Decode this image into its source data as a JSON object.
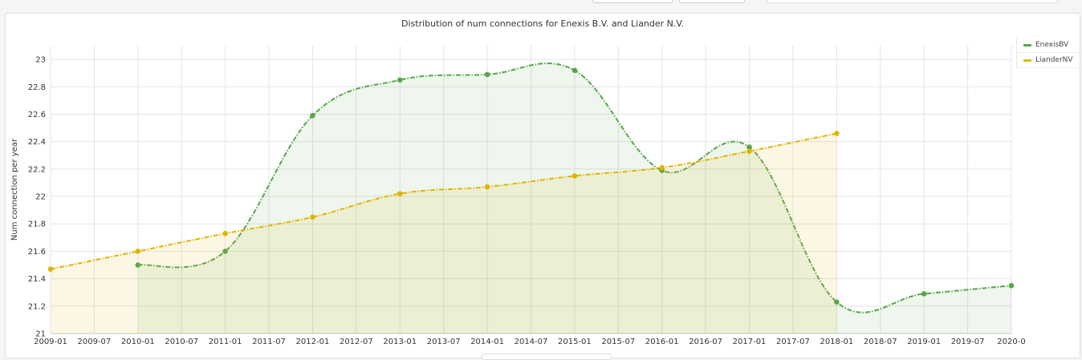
{
  "panel": {
    "title": "Distribution of num connections for Enexis B.V. and Liander N.V."
  },
  "chart_data": {
    "type": "line",
    "title": "Distribution of num connections for Enexis B.V. and Liander N.V.",
    "xlabel": "",
    "ylabel": "Num connection per year",
    "x_ticks": [
      "2009-01",
      "2009-07",
      "2010-01",
      "2010-07",
      "2011-01",
      "2011-07",
      "2012-01",
      "2012-07",
      "2013-01",
      "2013-07",
      "2014-01",
      "2014-07",
      "2015-01",
      "2015-07",
      "2016-01",
      "2016-07",
      "2017-01",
      "2017-07",
      "2018-01",
      "2018-07",
      "2019-01",
      "2019-07",
      "2020-0"
    ],
    "y_ticks": [
      "21",
      "21.2",
      "21.4",
      "21.6",
      "21.8",
      "22",
      "22.2",
      "22.4",
      "22.6",
      "22.8",
      "23"
    ],
    "ylim": [
      21,
      23.1
    ],
    "xlim": [
      "2009-01",
      "2020-01"
    ],
    "grid": true,
    "legend_position": "right",
    "series": [
      {
        "name": "EnexisBV",
        "color": "#56a64b",
        "x": [
          "2010-01",
          "2011-01",
          "2012-01",
          "2013-01",
          "2014-01",
          "2015-01",
          "2016-01",
          "2017-01",
          "2018-01",
          "2019-01",
          "2020-01"
        ],
        "values": [
          21.5,
          21.6,
          22.59,
          22.85,
          22.89,
          22.92,
          22.19,
          22.36,
          21.23,
          21.29,
          21.35
        ]
      },
      {
        "name": "LianderNV",
        "color": "#e0b400",
        "x": [
          "2009-01",
          "2010-01",
          "2011-01",
          "2012-01",
          "2013-01",
          "2014-01",
          "2015-01",
          "2016-01",
          "2017-01",
          "2018-01"
        ],
        "values": [
          21.47,
          21.6,
          21.73,
          21.85,
          22.02,
          22.07,
          22.15,
          22.21,
          22.33,
          22.46
        ]
      }
    ]
  }
}
